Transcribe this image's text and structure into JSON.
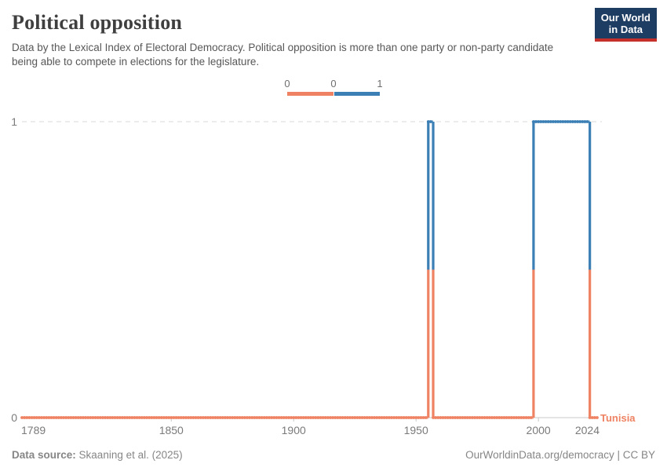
{
  "header": {
    "title": "Political opposition",
    "subtitle": "Data by the Lexical Index of Electoral Democracy. Political opposition is more than one party or non-party candidate being able to compete in elections for the legislature."
  },
  "logo": {
    "line1": "Our World",
    "line2": "in Data",
    "bg_color": "#1d3d63",
    "accent_color": "#c5312a"
  },
  "legend": {
    "labels": [
      "0",
      "0",
      "1"
    ],
    "bins": [
      {
        "label": "0",
        "color": "#ee8262"
      },
      {
        "label": "1",
        "color": "#3b7fb5"
      }
    ]
  },
  "chart_data": {
    "type": "line",
    "step": true,
    "title": "Political opposition",
    "entity_label": "Tunisia",
    "xlim": [
      1789,
      2024
    ],
    "ylim": [
      0,
      1
    ],
    "x_ticks": [
      1789,
      1850,
      1900,
      1950,
      2000,
      2024
    ],
    "x_tick_labels": [
      "1789",
      "1850",
      "1900",
      "1950",
      "2000",
      "2024"
    ],
    "y_ticks": [
      0,
      1
    ],
    "y_tick_labels": [
      "0",
      "1"
    ],
    "grid": "dashed line at y=1, solid axis at y=0",
    "legend_position": "top-center",
    "value_colors": {
      "0": "#ee8262",
      "1": "#3b7fb5"
    },
    "series": [
      {
        "name": "Tunisia",
        "segments": [
          {
            "start": 1789,
            "end": 1954,
            "value": 0
          },
          {
            "start": 1955,
            "end": 1956,
            "value": 1
          },
          {
            "start": 1957,
            "end": 1997,
            "value": 0
          },
          {
            "start": 1998,
            "end": 2020,
            "value": 1
          },
          {
            "start": 2021,
            "end": 2024,
            "value": 0
          }
        ]
      }
    ]
  },
  "footer": {
    "source_label": "Data source:",
    "source": "Skaaning et al. (2025)",
    "right": "OurWorldinData.org/democracy | CC BY"
  }
}
